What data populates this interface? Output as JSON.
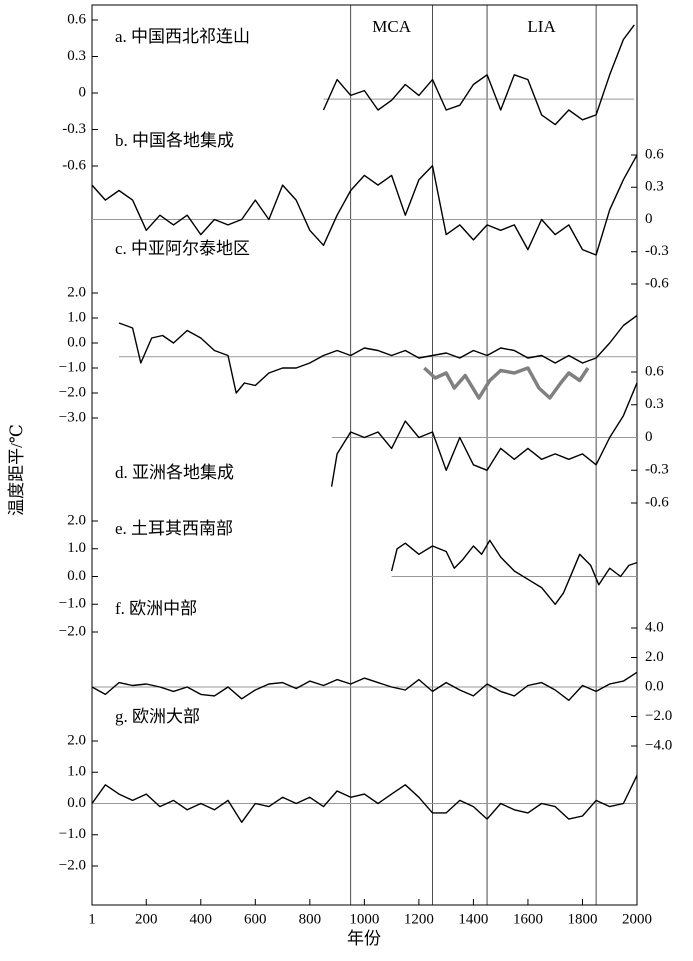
{
  "x_axis": {
    "label": "年份",
    "xlim": [
      1,
      2000
    ],
    "xticks": [
      1,
      200,
      400,
      600,
      800,
      1000,
      1200,
      1400,
      1600,
      1800,
      2000
    ]
  },
  "y_label": "温度距平/℃",
  "periods": [
    {
      "label": "MCA",
      "start": 950,
      "end": 1250
    },
    {
      "label": "LIA",
      "start": 1450,
      "end": 1850
    }
  ],
  "chart_data": [
    {
      "type": "line",
      "title": "a. 中国西北祁连山",
      "axis_side": "left",
      "ylim": [
        -0.6,
        0.6
      ],
      "yticks": [
        -0.6,
        -0.3,
        0.0,
        0.3,
        0.6
      ],
      "baseline": -0.05,
      "series": [
        {
          "color": "#000000",
          "x": [
            850,
            900,
            950,
            1000,
            1050,
            1100,
            1150,
            1200,
            1250,
            1300,
            1350,
            1400,
            1450,
            1500,
            1550,
            1600,
            1650,
            1700,
            1750,
            1800,
            1850,
            1900,
            1950,
            1990
          ],
          "values": [
            -0.14,
            0.11,
            -0.02,
            0.02,
            -0.14,
            -0.06,
            0.07,
            -0.02,
            0.11,
            -0.14,
            -0.1,
            0.07,
            0.15,
            -0.14,
            0.15,
            0.11,
            -0.18,
            -0.26,
            -0.14,
            -0.22,
            -0.18,
            0.15,
            0.44,
            0.56
          ]
        }
      ]
    },
    {
      "type": "line",
      "title": "b. 中国各地集成",
      "axis_side": "right",
      "ylim": [
        -0.6,
        0.6
      ],
      "yticks": [
        -0.6,
        -0.3,
        0.0,
        0.3,
        0.6
      ],
      "baseline": 0,
      "series": [
        {
          "color": "#000000",
          "x": [
            1,
            50,
            100,
            150,
            200,
            250,
            300,
            350,
            400,
            450,
            500,
            550,
            600,
            650,
            700,
            750,
            800,
            850,
            900,
            950,
            1000,
            1050,
            1100,
            1150,
            1200,
            1250,
            1300,
            1350,
            1400,
            1450,
            1500,
            1550,
            1600,
            1650,
            1700,
            1750,
            1800,
            1850,
            1900,
            1950,
            2000
          ],
          "values": [
            0.32,
            0.18,
            0.27,
            0.18,
            -0.1,
            0.04,
            -0.05,
            0.04,
            -0.14,
            0,
            -0.05,
            0,
            0.18,
            0,
            0.32,
            0.18,
            -0.1,
            -0.24,
            0.04,
            0.27,
            0.41,
            0.32,
            0.41,
            0.04,
            0.37,
            0.5,
            -0.14,
            -0.05,
            -0.19,
            -0.05,
            -0.1,
            -0.05,
            -0.28,
            0,
            -0.14,
            -0.05,
            -0.28,
            -0.33,
            0.09,
            0.37,
            0.6
          ]
        }
      ]
    },
    {
      "type": "line",
      "title": "c. 中亚阿尔泰地区",
      "axis_side": "left",
      "ylim": [
        -3.0,
        2.0
      ],
      "yticks": [
        {
          "value": -3,
          "label": "−3.0"
        },
        {
          "value": -2,
          "label": "−2.0"
        },
        {
          "value": -1,
          "label": "−1.0"
        },
        {
          "value": 0,
          "label": "0.0"
        },
        {
          "value": 1,
          "label": "1.0"
        },
        {
          "value": 2,
          "label": "2.0"
        }
      ],
      "baseline": -0.55,
      "series": [
        {
          "color": "#000000",
          "x": [
            100,
            150,
            180,
            220,
            260,
            300,
            350,
            400,
            450,
            500,
            530,
            560,
            600,
            650,
            700,
            750,
            800,
            850,
            900,
            950,
            1000,
            1050,
            1100,
            1150,
            1200,
            1250,
            1300,
            1350,
            1400,
            1450,
            1500,
            1550,
            1600,
            1650,
            1700,
            1750,
            1800,
            1850,
            1900,
            1950,
            2000
          ],
          "values": [
            0.8,
            0.6,
            -0.8,
            0.2,
            0.3,
            0.0,
            0.5,
            0.2,
            -0.3,
            -0.5,
            -2.0,
            -1.6,
            -1.7,
            -1.2,
            -1.0,
            -1.0,
            -0.8,
            -0.5,
            -0.3,
            -0.5,
            -0.2,
            -0.3,
            -0.5,
            -0.3,
            -0.6,
            -0.5,
            -0.4,
            -0.6,
            -0.3,
            -0.5,
            -0.2,
            -0.3,
            -0.6,
            -0.5,
            -0.8,
            -0.5,
            -0.8,
            -0.6,
            0.0,
            0.7,
            1.1
          ]
        },
        {
          "color": "#808080",
          "x": [
            1220,
            1260,
            1300,
            1330,
            1370,
            1420,
            1460,
            1500,
            1550,
            1600,
            1640,
            1680,
            1720,
            1750,
            1790,
            1820
          ],
          "values": [
            -1.0,
            -1.4,
            -1.2,
            -1.8,
            -1.3,
            -2.2,
            -1.5,
            -1.1,
            -1.2,
            -1.0,
            -1.8,
            -2.2,
            -1.6,
            -1.2,
            -1.5,
            -1.0
          ]
        }
      ]
    },
    {
      "type": "line",
      "title": "d. 亚洲各地集成",
      "axis_side": "right",
      "ylim": [
        -0.6,
        0.6
      ],
      "yticks": [
        -0.6,
        -0.3,
        0.0,
        0.3,
        0.6
      ],
      "baseline": 0,
      "series": [
        {
          "color": "#000000",
          "x": [
            880,
            900,
            950,
            1000,
            1050,
            1100,
            1150,
            1200,
            1250,
            1300,
            1350,
            1400,
            1450,
            1500,
            1550,
            1600,
            1650,
            1700,
            1750,
            1800,
            1850,
            1900,
            1950,
            2000
          ],
          "values": [
            -0.45,
            -0.15,
            0.05,
            0.0,
            0.05,
            -0.1,
            0.15,
            0.0,
            0.05,
            -0.3,
            0.0,
            -0.25,
            -0.3,
            -0.1,
            -0.2,
            -0.1,
            -0.2,
            -0.15,
            -0.2,
            -0.15,
            -0.25,
            0.0,
            0.2,
            0.5
          ]
        }
      ]
    },
    {
      "type": "line",
      "title": "e. 土耳其西南部",
      "axis_side": "left",
      "ylim": [
        -2.0,
        2.0
      ],
      "yticks": [
        {
          "value": -2,
          "label": "−2.0"
        },
        {
          "value": -1,
          "label": "−1.0"
        },
        {
          "value": 0,
          "label": "0.0"
        },
        {
          "value": 1,
          "label": "1.0"
        },
        {
          "value": 2,
          "label": "2.0"
        }
      ],
      "baseline": 0,
      "series": [
        {
          "color": "#000000",
          "x": [
            1100,
            1120,
            1150,
            1200,
            1250,
            1300,
            1330,
            1360,
            1400,
            1430,
            1460,
            1500,
            1550,
            1600,
            1650,
            1700,
            1730,
            1760,
            1790,
            1830,
            1860,
            1900,
            1940,
            1970,
            2000
          ],
          "values": [
            0.2,
            1.0,
            1.2,
            0.8,
            1.1,
            0.9,
            0.3,
            0.6,
            1.1,
            0.8,
            1.3,
            0.7,
            0.2,
            -0.1,
            -0.4,
            -1.0,
            -0.6,
            0.1,
            0.8,
            0.4,
            -0.3,
            0.3,
            0.0,
            0.4,
            0.5
          ]
        }
      ]
    },
    {
      "type": "line",
      "title": "f. 欧洲中部",
      "axis_side": "right",
      "ylim": [
        -4.0,
        4.0
      ],
      "yticks": [
        {
          "value": -4,
          "label": "−4.0"
        },
        {
          "value": -2,
          "label": "−2.0"
        },
        {
          "value": 0,
          "label": "0.0"
        },
        {
          "value": 2,
          "label": "2.0"
        },
        {
          "value": 4,
          "label": "4.0"
        }
      ],
      "baseline": 0,
      "series": [
        {
          "color": "#000000",
          "x": [
            1,
            50,
            100,
            150,
            200,
            250,
            300,
            350,
            400,
            450,
            500,
            550,
            600,
            650,
            700,
            750,
            800,
            850,
            900,
            950,
            1000,
            1050,
            1100,
            1150,
            1200,
            1250,
            1300,
            1350,
            1400,
            1450,
            1500,
            1550,
            1600,
            1650,
            1700,
            1750,
            1800,
            1850,
            1900,
            1950,
            2000
          ],
          "values": [
            0.0,
            -0.5,
            0.3,
            0.1,
            0.2,
            0.0,
            -0.3,
            0.0,
            -0.5,
            -0.6,
            0.0,
            -0.8,
            -0.2,
            0.2,
            0.3,
            -0.1,
            0.4,
            0.1,
            0.5,
            0.2,
            0.6,
            0.3,
            0.0,
            -0.2,
            0.5,
            -0.3,
            0.3,
            -0.2,
            -0.6,
            0.2,
            -0.3,
            -0.6,
            0.1,
            0.3,
            -0.2,
            -0.9,
            0.1,
            -0.3,
            0.2,
            0.4,
            1.0
          ]
        }
      ]
    },
    {
      "type": "line",
      "title": "g. 欧洲大部",
      "axis_side": "left",
      "ylim": [
        -2.0,
        2.0
      ],
      "yticks": [
        {
          "value": -2,
          "label": "−2.0"
        },
        {
          "value": -1,
          "label": "−1.0"
        },
        {
          "value": 0,
          "label": "0.0"
        },
        {
          "value": 1,
          "label": "1.0"
        },
        {
          "value": 2,
          "label": "2.0"
        }
      ],
      "baseline": 0,
      "series": [
        {
          "color": "#000000",
          "x": [
            1,
            50,
            100,
            150,
            200,
            250,
            300,
            350,
            400,
            450,
            500,
            550,
            600,
            650,
            700,
            750,
            800,
            850,
            900,
            950,
            1000,
            1050,
            1100,
            1150,
            1200,
            1250,
            1300,
            1350,
            1400,
            1450,
            1500,
            1550,
            1600,
            1650,
            1700,
            1750,
            1800,
            1850,
            1900,
            1950,
            2000
          ],
          "values": [
            0.0,
            0.6,
            0.3,
            0.1,
            0.3,
            -0.1,
            0.1,
            -0.2,
            0.0,
            -0.2,
            0.1,
            -0.6,
            0.0,
            -0.1,
            0.2,
            0.0,
            0.2,
            -0.1,
            0.4,
            0.2,
            0.3,
            0.0,
            0.3,
            0.6,
            0.2,
            -0.3,
            -0.3,
            0.1,
            -0.1,
            -0.5,
            0.0,
            -0.2,
            -0.3,
            0.0,
            -0.1,
            -0.5,
            -0.4,
            0.1,
            -0.1,
            0.0,
            0.9
          ]
        }
      ]
    }
  ]
}
